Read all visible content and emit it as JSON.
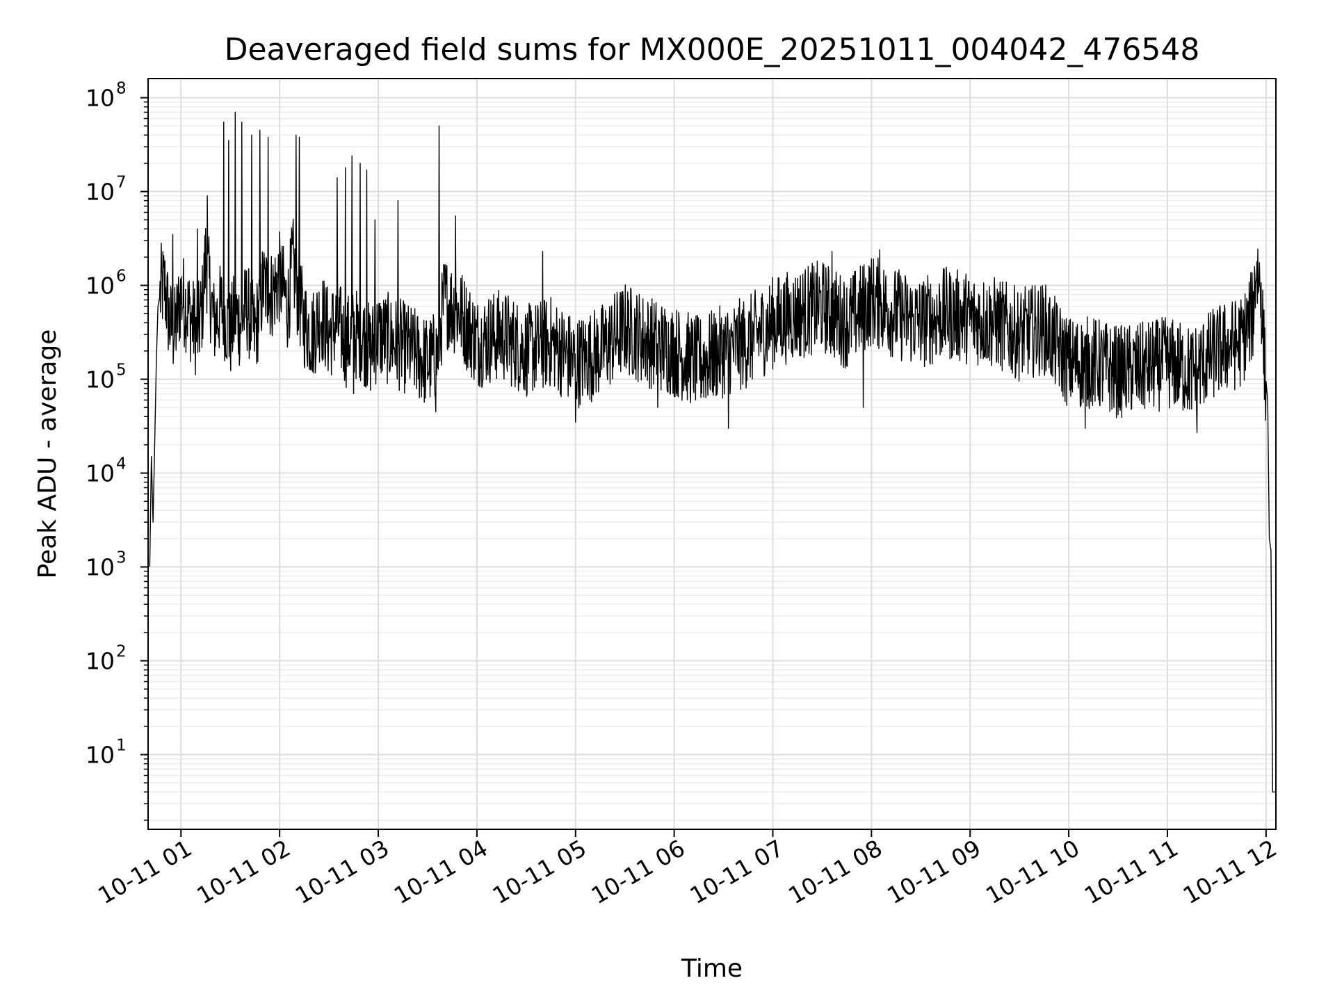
{
  "chart_data": {
    "type": "line",
    "title": "Deaveraged field sums for MX000E_20251011_004042_476548",
    "xlabel": "Time",
    "ylabel": "Peak ADU - average",
    "yscale": "log",
    "ylim": [
      1.6,
      160000000
    ],
    "xlim": [
      "2025-10-11 00:40",
      "2025-10-11 12:06"
    ],
    "grid": true,
    "line_color": "#000000",
    "x_ticks": [
      {
        "t": "2025-10-11 01:00",
        "label": "10-11 01"
      },
      {
        "t": "2025-10-11 02:00",
        "label": "10-11 02"
      },
      {
        "t": "2025-10-11 03:00",
        "label": "10-11 03"
      },
      {
        "t": "2025-10-11 04:00",
        "label": "10-11 04"
      },
      {
        "t": "2025-10-11 05:00",
        "label": "10-11 05"
      },
      {
        "t": "2025-10-11 06:00",
        "label": "10-11 06"
      },
      {
        "t": "2025-10-11 07:00",
        "label": "10-11 07"
      },
      {
        "t": "2025-10-11 08:00",
        "label": "10-11 08"
      },
      {
        "t": "2025-10-11 09:00",
        "label": "10-11 09"
      },
      {
        "t": "2025-10-11 10:00",
        "label": "10-11 10"
      },
      {
        "t": "2025-10-11 11:00",
        "label": "10-11 11"
      },
      {
        "t": "2025-10-11 12:00",
        "label": "10-11 12"
      }
    ],
    "y_ticks": [
      {
        "value": 10,
        "base": "10",
        "exp": "1"
      },
      {
        "value": 100,
        "base": "10",
        "exp": "2"
      },
      {
        "value": 1000,
        "base": "10",
        "exp": "3"
      },
      {
        "value": 10000,
        "base": "10",
        "exp": "4"
      },
      {
        "value": 100000,
        "base": "10",
        "exp": "5"
      },
      {
        "value": 1000000,
        "base": "10",
        "exp": "6"
      },
      {
        "value": 10000000,
        "base": "10",
        "exp": "7"
      },
      {
        "value": 100000000,
        "base": "10",
        "exp": "8"
      }
    ],
    "series": [
      {
        "x": [
          "2025-10-11 00:41",
          "2025-10-11 00:42",
          "2025-10-11 00:43",
          "2025-10-11 00:44",
          "2025-10-11 00:45",
          "2025-10-11 00:46",
          "2025-10-11 00:48",
          "2025-10-11 00:50",
          "2025-10-11 00:53",
          "2025-10-11 00:56",
          "2025-10-11 01:00",
          "2025-10-11 01:05",
          "2025-10-11 01:10",
          "2025-10-11 01:13",
          "2025-10-11 01:15",
          "2025-10-11 01:20",
          "2025-10-11 01:25",
          "2025-10-11 01:30",
          "2025-10-11 01:33",
          "2025-10-11 01:36",
          "2025-10-11 01:40",
          "2025-10-11 01:45",
          "2025-10-11 01:50",
          "2025-10-11 01:55",
          "2025-10-11 02:00",
          "2025-10-11 02:05",
          "2025-10-11 02:08",
          "2025-10-11 02:10",
          "2025-10-11 02:15",
          "2025-10-11 02:20",
          "2025-10-11 02:25",
          "2025-10-11 02:30",
          "2025-10-11 02:35",
          "2025-10-11 02:40",
          "2025-10-11 02:45",
          "2025-10-11 02:50",
          "2025-10-11 02:55",
          "2025-10-11 03:00",
          "2025-10-11 03:10",
          "2025-10-11 03:20",
          "2025-10-11 03:30",
          "2025-10-11 03:36",
          "2025-10-11 03:40",
          "2025-10-11 03:50",
          "2025-10-11 04:00",
          "2025-10-11 04:15",
          "2025-10-11 04:30",
          "2025-10-11 04:45",
          "2025-10-11 05:00",
          "2025-10-11 05:15",
          "2025-10-11 05:30",
          "2025-10-11 05:45",
          "2025-10-11 06:00",
          "2025-10-11 06:15",
          "2025-10-11 06:30",
          "2025-10-11 06:45",
          "2025-10-11 07:00",
          "2025-10-11 07:15",
          "2025-10-11 07:30",
          "2025-10-11 07:45",
          "2025-10-11 08:00",
          "2025-10-11 08:15",
          "2025-10-11 08:30",
          "2025-10-11 08:45",
          "2025-10-11 09:00",
          "2025-10-11 09:15",
          "2025-10-11 09:30",
          "2025-10-11 09:45",
          "2025-10-11 10:00",
          "2025-10-11 10:15",
          "2025-10-11 10:30",
          "2025-10-11 10:45",
          "2025-10-11 11:00",
          "2025-10-11 11:15",
          "2025-10-11 11:30",
          "2025-10-11 11:45",
          "2025-10-11 11:52",
          "2025-10-11 11:54",
          "2025-10-11 11:57",
          "2025-10-11 11:59",
          "2025-10-11 12:01",
          "2025-10-11 12:02",
          "2025-10-11 12:03",
          "2025-10-11 12:04",
          "2025-10-11 12:05",
          "2025-10-11 12:06"
        ],
        "y": [
          1000,
          15000,
          3000,
          20000,
          150000,
          600000,
          900000,
          1000000,
          400000,
          300000,
          800000,
          500000,
          300000,
          600000,
          2000000,
          400000,
          600000,
          300000,
          500000,
          400000,
          600000,
          300000,
          1000000,
          800000,
          1200000,
          600000,
          1800000,
          1000000,
          400000,
          300000,
          500000,
          300000,
          400000,
          250000,
          300000,
          300000,
          200000,
          300000,
          250000,
          200000,
          150000,
          180000,
          700000,
          500000,
          250000,
          300000,
          200000,
          250000,
          150000,
          200000,
          350000,
          250000,
          200000,
          150000,
          200000,
          250000,
          400000,
          500000,
          600000,
          400000,
          700000,
          500000,
          400000,
          500000,
          450000,
          400000,
          300000,
          350000,
          150000,
          150000,
          120000,
          130000,
          150000,
          120000,
          200000,
          250000,
          500000,
          1600000,
          900000,
          150000,
          60000,
          2000,
          1500,
          4,
          4,
          4
        ]
      }
    ],
    "spikes": [
      {
        "t": "2025-10-11 00:55",
        "y": 3500000
      },
      {
        "t": "2025-10-11 01:10",
        "y": 4000000
      },
      {
        "t": "2025-10-11 01:16",
        "y": 9000000
      },
      {
        "t": "2025-10-11 01:26",
        "y": 55000000
      },
      {
        "t": "2025-10-11 01:29",
        "y": 35000000
      },
      {
        "t": "2025-10-11 01:33",
        "y": 70000000
      },
      {
        "t": "2025-10-11 01:37",
        "y": 55000000
      },
      {
        "t": "2025-10-11 01:43",
        "y": 40000000
      },
      {
        "t": "2025-10-11 01:48",
        "y": 45000000
      },
      {
        "t": "2025-10-11 01:53",
        "y": 38000000
      },
      {
        "t": "2025-10-11 02:10",
        "y": 40000000
      },
      {
        "t": "2025-10-11 02:12",
        "y": 38000000
      },
      {
        "t": "2025-10-11 02:35",
        "y": 14000000
      },
      {
        "t": "2025-10-11 02:40",
        "y": 18000000
      },
      {
        "t": "2025-10-11 02:44",
        "y": 24000000
      },
      {
        "t": "2025-10-11 02:49",
        "y": 20000000
      },
      {
        "t": "2025-10-11 02:53",
        "y": 17000000
      },
      {
        "t": "2025-10-11 02:58",
        "y": 5000000
      },
      {
        "t": "2025-10-11 03:12",
        "y": 8000000
      },
      {
        "t": "2025-10-11 03:37",
        "y": 50000000
      },
      {
        "t": "2025-10-11 03:47",
        "y": 5500000
      },
      {
        "t": "2025-10-11 04:40",
        "y": 2300000
      },
      {
        "t": "2025-10-11 07:36",
        "y": 2300000
      },
      {
        "t": "2025-10-11 08:05",
        "y": 2400000
      }
    ],
    "drops": [
      {
        "t": "2025-10-11 02:45",
        "y": 70000
      },
      {
        "t": "2025-10-11 03:35",
        "y": 45000
      },
      {
        "t": "2025-10-11 05:00",
        "y": 35000
      },
      {
        "t": "2025-10-11 05:50",
        "y": 50000
      },
      {
        "t": "2025-10-11 06:33",
        "y": 30000
      },
      {
        "t": "2025-10-11 07:55",
        "y": 50000
      },
      {
        "t": "2025-10-11 10:10",
        "y": 30000
      },
      {
        "t": "2025-10-11 11:18",
        "y": 27000
      }
    ]
  }
}
